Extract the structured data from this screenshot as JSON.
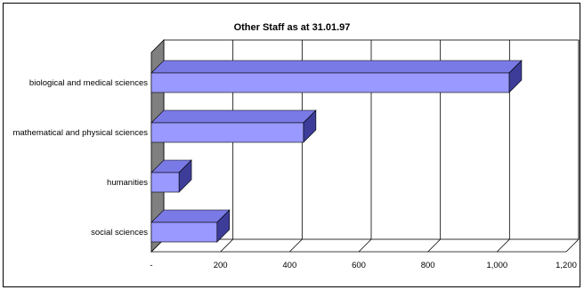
{
  "chart_data": {
    "type": "bar",
    "orientation": "horizontal",
    "style": "3d",
    "title": "Other Staff as at 31.01.97",
    "categories": [
      "social sciences",
      "humanities",
      "mathematical and physical sciences",
      "biological and medical sciences"
    ],
    "values": [
      190,
      80,
      440,
      1035
    ],
    "xlim": [
      0,
      1200
    ],
    "x_ticks": [
      0,
      200,
      400,
      600,
      800,
      1000,
      1200
    ],
    "x_tick_labels": [
      "-",
      "200",
      "400",
      "600",
      "800",
      "1,000",
      "1,200"
    ],
    "grid": true,
    "legend": "none",
    "colors": {
      "bar_front": "#9999ff",
      "bar_top": "#7a7ae6",
      "bar_side": "#3d3d99",
      "wall": "#808080",
      "gridline": "#000000"
    }
  }
}
